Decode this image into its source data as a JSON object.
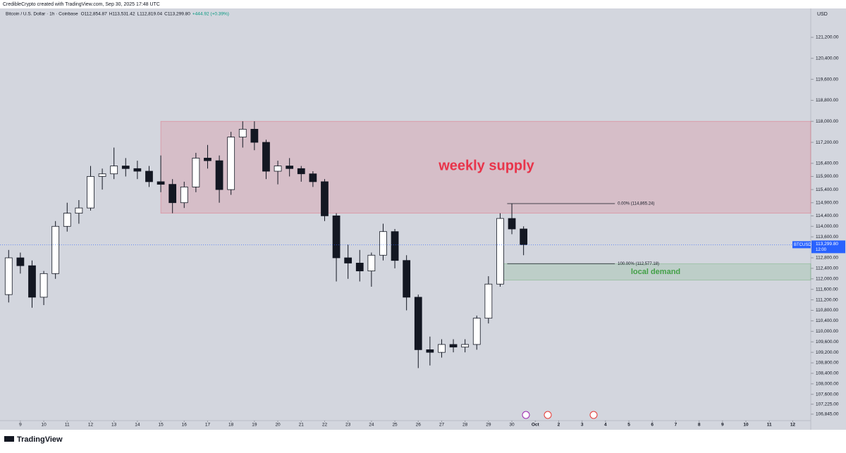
{
  "chart_data": {
    "type": "candlestick",
    "caption": "CredibleCrypto created with TradingView.com, Sep 30, 2025 17:48 UTC",
    "title": "Bitcoin / U.S. Dollar · 1h · Coinbase",
    "legend_values": [
      "O112,854.87",
      "H113,531.42",
      "L112,819.04",
      "C113,299.80",
      "+444.92 (+0.39%)"
    ],
    "currency": "USD",
    "brand": "TradingView",
    "x": [
      8.5,
      9,
      9.5,
      10,
      10.5,
      11,
      11.5,
      12,
      12.5,
      13,
      13.5,
      14,
      14.5,
      15,
      15.5,
      16,
      16.5,
      17,
      17.5,
      18,
      18.5,
      19,
      19.5,
      20,
      20.5,
      21,
      21.5,
      22,
      22.5,
      23,
      23.5,
      24,
      24.5,
      25,
      25.5,
      26,
      26.5,
      27,
      27.5,
      28,
      28.5,
      29,
      29.5,
      30,
      30.5
    ],
    "open": [
      111400,
      112800,
      112500,
      111300,
      112200,
      114000,
      114500,
      114700,
      115900,
      116000,
      116300,
      116200,
      116100,
      115700,
      115600,
      114900,
      115500,
      116600,
      116500,
      115400,
      117400,
      117700,
      117200,
      116100,
      116300,
      116200,
      116000,
      115700,
      114400,
      112800,
      112600,
      112300,
      112900,
      113800,
      112700,
      111300,
      109300,
      109200,
      109500,
      109400,
      109500,
      110500,
      111800,
      114300,
      113900
    ],
    "high": [
      113100,
      113000,
      112700,
      112300,
      114200,
      114900,
      115000,
      116300,
      116200,
      117000,
      116600,
      116500,
      116300,
      116700,
      115800,
      115700,
      116800,
      117100,
      116700,
      117600,
      118000,
      118000,
      117300,
      116500,
      116600,
      116300,
      116100,
      115800,
      114500,
      113300,
      113100,
      113000,
      114100,
      113900,
      112900,
      111400,
      109800,
      109700,
      109700,
      109700,
      110600,
      112100,
      114500,
      114865,
      114000
    ],
    "low": [
      111100,
      112200,
      110900,
      111000,
      112000,
      113800,
      114100,
      114600,
      115400,
      115800,
      115900,
      115800,
      115500,
      115300,
      114500,
      114700,
      115300,
      116200,
      114900,
      115200,
      117000,
      116900,
      115800,
      115600,
      115900,
      115700,
      115500,
      114200,
      111900,
      112000,
      111900,
      111700,
      112700,
      112400,
      110800,
      108600,
      108700,
      109000,
      109200,
      109200,
      109300,
      110300,
      111700,
      113700,
      112900
    ],
    "close": [
      112800,
      112500,
      111300,
      112200,
      114000,
      114500,
      114700,
      115900,
      116000,
      116300,
      116200,
      116100,
      115700,
      115600,
      114900,
      115500,
      116600,
      116500,
      115400,
      117400,
      117700,
      117200,
      116100,
      116300,
      116200,
      116000,
      115700,
      114400,
      112800,
      112600,
      112300,
      112900,
      113800,
      112700,
      111300,
      109300,
      109200,
      109500,
      109400,
      109500,
      110500,
      111800,
      114300,
      113900,
      113300
    ],
    "up_color": "#ffffff",
    "down_color": "#131722",
    "xlim": [
      8.13,
      42.77
    ],
    "xticks": [
      9,
      10,
      11,
      12,
      13,
      14,
      15,
      16,
      17,
      18,
      19,
      20,
      21,
      22,
      23,
      24,
      25,
      26,
      27,
      28,
      29,
      30,
      {
        "value": 31,
        "label": "Oct"
      },
      {
        "value": 32,
        "label": "2"
      },
      {
        "value": 33,
        "label": "3"
      },
      {
        "value": 34,
        "label": "4"
      },
      {
        "value": 35,
        "label": "5"
      },
      {
        "value": 36,
        "label": "6"
      },
      {
        "value": 37,
        "label": "7"
      },
      {
        "value": 38,
        "label": "8"
      },
      {
        "value": 39,
        "label": "9"
      },
      {
        "value": 40,
        "label": "10"
      },
      {
        "value": 41,
        "label": "11"
      },
      {
        "value": 42,
        "label": "12"
      }
    ],
    "ylim": [
      106600,
      122300
    ],
    "yticks": [
      {
        "value": 121200,
        "label": "121,200.00"
      },
      {
        "value": 120400,
        "label": "120,400.00"
      },
      {
        "value": 119600,
        "label": "119,600.00"
      },
      {
        "value": 118800,
        "label": "118,800.00"
      },
      {
        "value": 118000,
        "label": "118,000.00"
      },
      {
        "value": 117200,
        "label": "117,200.00"
      },
      {
        "value": 116400,
        "label": "116,400.00"
      },
      {
        "value": 115900,
        "label": "115,900.00"
      },
      {
        "value": 115400,
        "label": "115,400.00"
      },
      {
        "value": 114900,
        "label": "114,900.00"
      },
      {
        "value": 114400,
        "label": "114,400.00"
      },
      {
        "value": 114000,
        "label": "114,000.00"
      },
      {
        "value": 113600,
        "label": "113,600.00"
      },
      {
        "value": 112800,
        "label": "112,800.00"
      },
      {
        "value": 112400,
        "label": "112,400.00"
      },
      {
        "value": 112000,
        "label": "112,000.00"
      },
      {
        "value": 111600,
        "label": "111,600.00"
      },
      {
        "value": 111200,
        "label": "111,200.00"
      },
      {
        "value": 110800,
        "label": "110,800.00"
      },
      {
        "value": 110400,
        "label": "110,400.00"
      },
      {
        "value": 110000,
        "label": "110,000.00"
      },
      {
        "value": 109600,
        "label": "109,600.00"
      },
      {
        "value": 109200,
        "label": "109,200.00"
      },
      {
        "value": 108800,
        "label": "108,800.00"
      },
      {
        "value": 108400,
        "label": "108,400.00"
      },
      {
        "value": 108000,
        "label": "108,000.00"
      },
      {
        "value": 107600,
        "label": "107,600.00"
      },
      {
        "value": 107225,
        "label": "107,225.00"
      },
      {
        "value": 106845,
        "label": "106,845.00"
      }
    ],
    "zones": [
      {
        "label": "weekly supply",
        "from": 114500,
        "to": 118000,
        "start": 15,
        "color": "#e8344a"
      },
      {
        "label": "local demand",
        "from": 111950,
        "to": 112577.18,
        "start": 29.6,
        "color": "#43a047"
      }
    ],
    "levels": [
      {
        "label": "0.00% (114,865.24)",
        "value": 114865.24,
        "start": 29.8,
        "end": 34.4
      },
      {
        "label": "100.00% (112,577.18)",
        "value": 112577.18,
        "start": 29.8,
        "end": 34.4
      }
    ],
    "last_price": {
      "symbol": "BTCUSD",
      "value": 113299.8,
      "value_label": "113,299.80",
      "time": "12:00",
      "color": "#2962ff"
    }
  }
}
